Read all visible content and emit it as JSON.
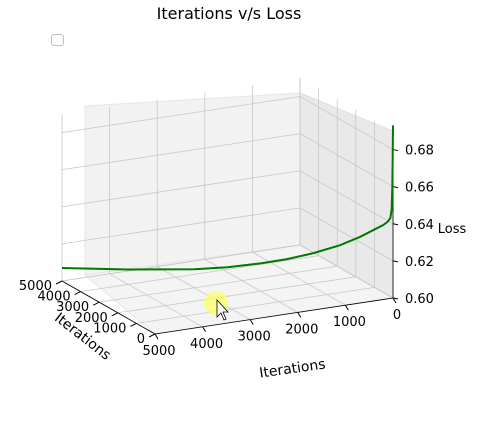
{
  "chart_data": {
    "type": "line",
    "projection": "3d",
    "title": "Iterations v/s Loss",
    "xlabel": "Iterations",
    "ylabel": "Iterations",
    "zlabel": "Loss",
    "xlim": [
      0,
      5000
    ],
    "ylim": [
      0,
      5000
    ],
    "zlim": [
      0.6,
      0.69
    ],
    "x_ticks": [
      "0",
      "1000",
      "2000",
      "3000",
      "4000",
      "5000"
    ],
    "y_ticks": [
      "0",
      "1000",
      "2000",
      "3000",
      "4000",
      "5000"
    ],
    "z_ticks": [
      "0.60",
      "0.62",
      "0.64",
      "0.66",
      "0.68"
    ],
    "grid": true,
    "legend": "top-left (empty)",
    "series": [
      {
        "color": "#007a00",
        "x": [
          0,
          5,
          10,
          20,
          40,
          80,
          150,
          300,
          500,
          800,
          1200,
          1600,
          2000,
          2500,
          3000,
          3500,
          4000,
          4500,
          5000
        ],
        "y": [
          0,
          5,
          10,
          20,
          40,
          80,
          150,
          300,
          500,
          800,
          1200,
          1600,
          2000,
          2500,
          3000,
          3500,
          4000,
          4500,
          5000
        ],
        "z": [
          0.693,
          0.675,
          0.66,
          0.648,
          0.643,
          0.641,
          0.639,
          0.636,
          0.632,
          0.627,
          0.622,
          0.618,
          0.615,
          0.612,
          0.61,
          0.609,
          0.608,
          0.6075,
          0.607
        ]
      }
    ]
  },
  "cursor": {
    "type": "pointer-with-highlight",
    "highlight_color": "#ffff66"
  }
}
